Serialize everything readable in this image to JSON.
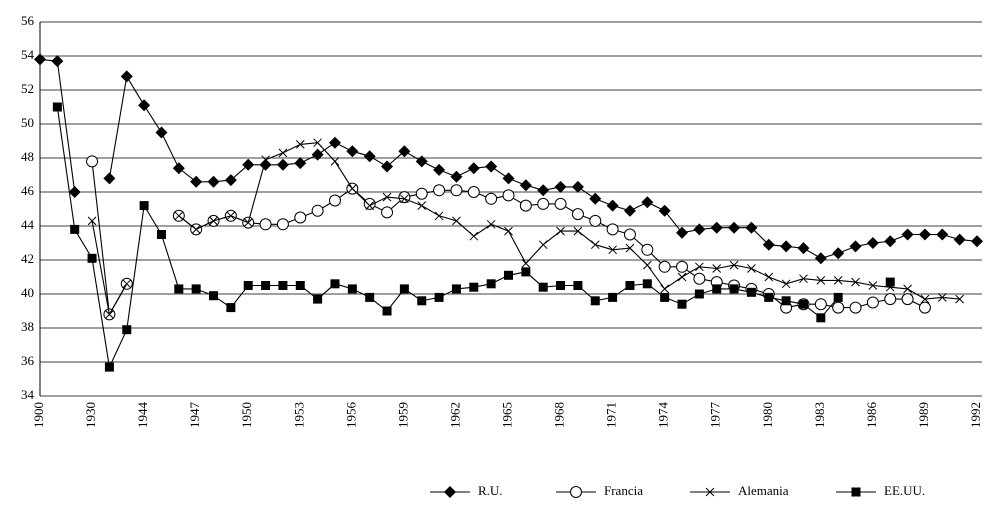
{
  "chart_data": {
    "type": "line",
    "categories": [
      "1900",
      null,
      null,
      "1930",
      null,
      null,
      "1944",
      null,
      null,
      "1947",
      null,
      null,
      "1950",
      null,
      null,
      "1953",
      null,
      null,
      "1956",
      null,
      null,
      "1959",
      null,
      null,
      "1962",
      null,
      null,
      "1965",
      null,
      null,
      "1968",
      null,
      null,
      "1971",
      null,
      null,
      "1974",
      null,
      null,
      "1977",
      null,
      null,
      "1980",
      null,
      null,
      "1983",
      null,
      null,
      "1986",
      null,
      null,
      "1989",
      null,
      null,
      "1992"
    ],
    "ylim": [
      34,
      56
    ],
    "yticks": [
      34,
      36,
      38,
      40,
      42,
      44,
      46,
      48,
      50,
      52,
      54,
      56
    ],
    "grid": true,
    "series": [
      {
        "name": "R.U.",
        "color": "#000000",
        "marker": "diamond",
        "values": [
          53.8,
          53.7,
          46.0,
          null,
          46.8,
          52.8,
          51.1,
          49.5,
          47.4,
          46.6,
          46.6,
          46.7,
          47.6,
          47.6,
          47.6,
          47.7,
          48.2,
          48.9,
          48.4,
          48.1,
          47.5,
          48.4,
          47.8,
          47.3,
          46.9,
          47.4,
          47.5,
          46.8,
          46.4,
          46.1,
          46.3,
          46.3,
          45.6,
          45.2,
          44.9,
          45.4,
          44.9,
          43.6,
          43.8,
          43.9,
          43.9,
          43.9,
          42.9,
          42.8,
          42.7,
          42.1,
          42.4,
          42.8,
          43.0,
          43.1,
          43.5,
          43.5,
          43.5,
          43.2,
          43.1
        ]
      },
      {
        "name": "Francia",
        "color": "#000000",
        "marker": "circle",
        "values": [
          null,
          null,
          null,
          47.8,
          38.8,
          40.6,
          null,
          null,
          44.6,
          43.8,
          44.3,
          44.6,
          44.2,
          44.1,
          44.1,
          44.5,
          44.9,
          45.5,
          46.2,
          45.3,
          44.8,
          45.7,
          45.9,
          46.1,
          46.1,
          46.0,
          45.6,
          45.8,
          45.2,
          45.3,
          45.3,
          44.7,
          44.3,
          43.8,
          43.5,
          42.6,
          41.6,
          41.6,
          40.9,
          40.7,
          40.5,
          40.3,
          40.0,
          39.2,
          39.4,
          39.4,
          39.2,
          39.2,
          39.5,
          39.7,
          39.7,
          39.2,
          null,
          null,
          null
        ]
      },
      {
        "name": "Alemania",
        "color": "#000000",
        "marker": "cross",
        "values": [
          null,
          null,
          null,
          44.3,
          38.8,
          40.6,
          null,
          null,
          44.6,
          43.8,
          44.3,
          44.6,
          44.2,
          47.9,
          48.3,
          48.8,
          48.9,
          47.8,
          46.2,
          45.2,
          45.7,
          45.6,
          45.2,
          44.6,
          44.3,
          43.4,
          44.1,
          43.7,
          41.8,
          42.9,
          43.7,
          43.7,
          42.9,
          42.6,
          42.7,
          41.7,
          40.3,
          41.0,
          41.6,
          41.5,
          41.7,
          41.5,
          41.0,
          40.6,
          40.9,
          40.8,
          40.8,
          40.7,
          40.5,
          40.4,
          40.3,
          39.7,
          39.8,
          39.7,
          null
        ]
      },
      {
        "name": "EE.UU.",
        "color": "#000000",
        "marker": "square",
        "values": [
          null,
          51.0,
          43.8,
          42.1,
          35.7,
          37.9,
          45.2,
          43.5,
          40.3,
          40.3,
          39.9,
          39.2,
          40.5,
          40.5,
          40.5,
          40.5,
          39.7,
          40.6,
          40.3,
          39.8,
          39.0,
          40.3,
          39.6,
          39.8,
          40.3,
          40.4,
          40.6,
          41.1,
          41.3,
          40.4,
          40.5,
          40.5,
          39.6,
          39.8,
          40.5,
          40.6,
          39.8,
          39.4,
          40.0,
          40.3,
          40.3,
          40.1,
          39.8,
          39.6,
          39.4,
          38.6,
          39.8,
          null,
          null,
          40.7,
          null,
          null,
          null,
          null,
          null
        ]
      }
    ]
  }
}
